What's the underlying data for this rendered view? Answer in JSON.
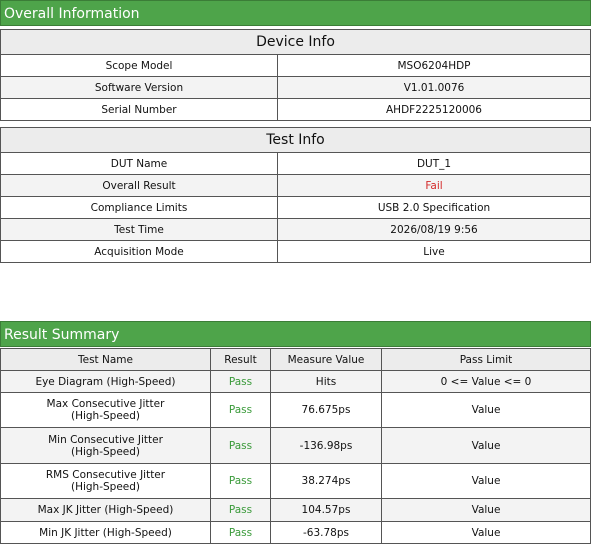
{
  "overall": {
    "title": "Overall Information"
  },
  "device_info": {
    "title": "Device Info",
    "rows": [
      [
        "Scope Model",
        "MSO6204HDP"
      ],
      [
        "Software Version",
        "V1.01.0076"
      ],
      [
        "Serial Number",
        "AHDF2225120006"
      ]
    ]
  },
  "test_info": {
    "title": "Test Info",
    "rows": [
      [
        "DUT Name",
        "DUT_1"
      ],
      [
        "Overall Result",
        "Fail"
      ],
      [
        "Compliance Limits",
        "USB 2.0 Specification"
      ],
      [
        "Test Time",
        "2026/08/19 9:56"
      ],
      [
        "Acquisition Mode",
        "Live"
      ]
    ]
  },
  "result_summary": {
    "title": "Result Summary",
    "columns": [
      "Test Name",
      "Result",
      "Measure Value",
      "Pass Limit"
    ],
    "rows": [
      [
        "Eye Diagram (High-Speed)",
        "Pass",
        "Hits",
        "0 <= Value <= 0"
      ],
      [
        "Max Consecutive Jitter (High-Speed)",
        "Pass",
        "76.675ps",
        "Value"
      ],
      [
        "Min Consecutive Jitter (High-Speed)",
        "Pass",
        "-136.98ps",
        "Value"
      ],
      [
        "RMS Consecutive Jitter (High-Speed)",
        "Pass",
        "38.274ps",
        "Value"
      ],
      [
        "Max JK Jitter (High-Speed)",
        "Pass",
        "104.57ps",
        "Value"
      ],
      [
        "Min JK Jitter (High-Speed)",
        "Pass",
        "-63.78ps",
        "Value"
      ]
    ]
  }
}
